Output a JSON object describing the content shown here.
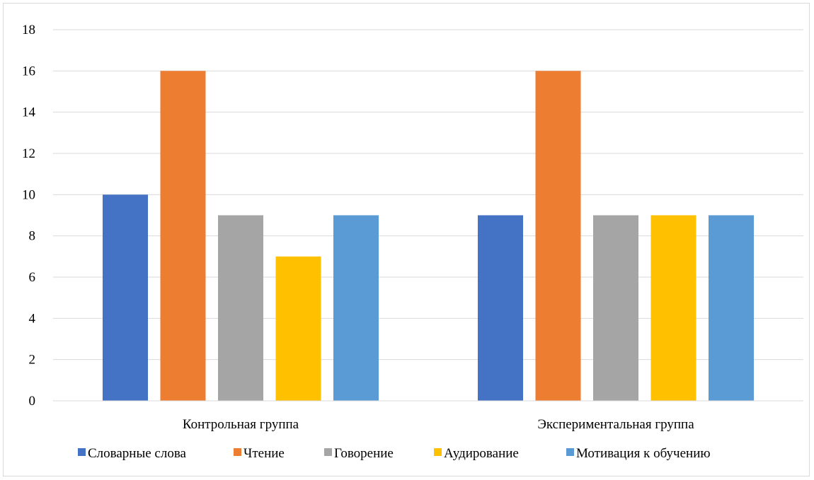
{
  "chart_data": {
    "type": "bar",
    "categories": [
      "Контрольная группа",
      "Экспериментальная группа"
    ],
    "series": [
      {
        "name": "Словарные слова",
        "values": [
          10,
          9
        ],
        "color": "#4472c4"
      },
      {
        "name": "Чтение",
        "values": [
          16,
          16
        ],
        "color": "#ed7d31"
      },
      {
        "name": "Говорение",
        "values": [
          9,
          9
        ],
        "color": "#a5a5a5"
      },
      {
        "name": "Аудирование",
        "values": [
          7,
          9
        ],
        "color": "#ffc000"
      },
      {
        "name": "Мотивация к обучению",
        "values": [
          9,
          9
        ],
        "color": "#5b9bd5"
      }
    ],
    "ylim": [
      0,
      18
    ],
    "yticks": [
      0,
      2,
      4,
      6,
      8,
      10,
      12,
      14,
      16,
      18
    ],
    "grid": true,
    "legend_position": "bottom",
    "title": "",
    "xlabel": "",
    "ylabel": ""
  }
}
